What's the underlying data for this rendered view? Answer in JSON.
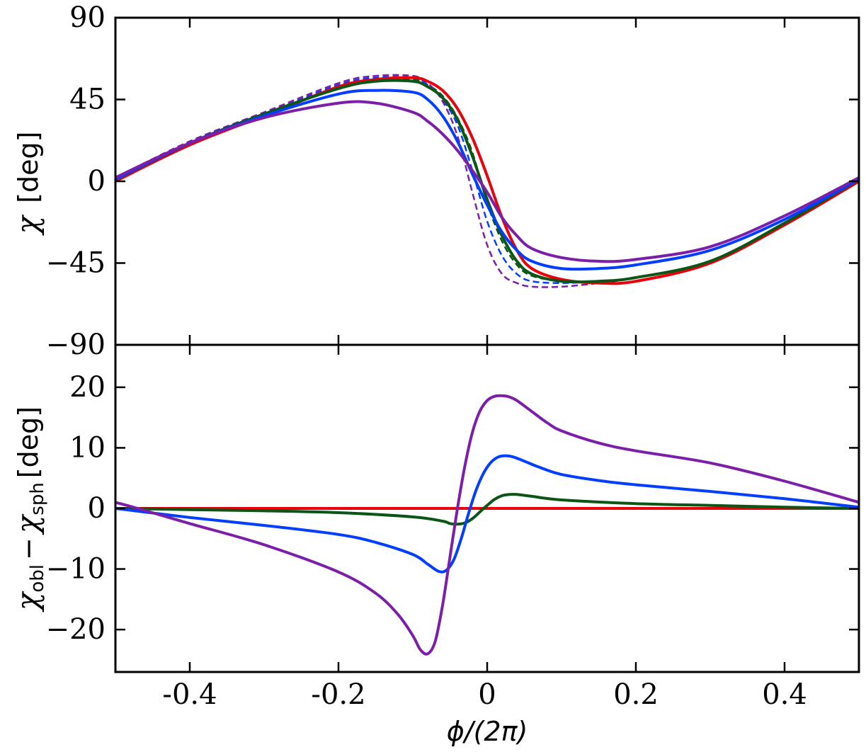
{
  "chart_data": [
    {
      "type": "line",
      "panel": "top",
      "ylabel_symbol": "χ",
      "ylabel_unit": "[deg]",
      "xlim": [
        -0.5,
        0.5
      ],
      "ylim": [
        -90,
        90
      ],
      "yticks": [
        90,
        45,
        0,
        -45,
        -90
      ],
      "ytick_labels": [
        "90",
        "45",
        "0",
        "−45",
        "−90"
      ],
      "grid": false,
      "series": [
        {
          "color": "#e8000b",
          "style": "solid",
          "shift": 0.0,
          "amp": 1.0,
          "x": [
            -0.5,
            -0.4,
            -0.3,
            -0.2,
            -0.15,
            -0.1,
            -0.08,
            -0.06,
            -0.04,
            -0.02,
            0,
            0.02,
            0.04,
            0.06,
            0.1,
            0.15,
            0.2,
            0.3,
            0.4,
            0.5
          ],
          "y": [
            0,
            20,
            36,
            52,
            56,
            57,
            55,
            50,
            40,
            24,
            3,
            -20,
            -38,
            -48,
            -54,
            -56,
            -55,
            -45,
            -24,
            0
          ]
        },
        {
          "color": "#0b5516",
          "style": "solid",
          "x": [
            -0.5,
            -0.4,
            -0.3,
            -0.2,
            -0.15,
            -0.1,
            -0.08,
            -0.06,
            -0.04,
            -0.02,
            0,
            0.02,
            0.04,
            0.06,
            0.1,
            0.15,
            0.2,
            0.3,
            0.4,
            0.5
          ],
          "y": [
            1,
            21,
            37,
            51,
            55,
            55,
            52,
            46,
            34,
            14,
            -10,
            -30,
            -44,
            -51,
            -55,
            -55,
            -53,
            -44,
            -23,
            1
          ]
        },
        {
          "color": "#023eff",
          "style": "solid",
          "x": [
            -0.5,
            -0.4,
            -0.3,
            -0.2,
            -0.15,
            -0.1,
            -0.08,
            -0.06,
            -0.04,
            -0.02,
            0,
            0.02,
            0.04,
            0.06,
            0.1,
            0.15,
            0.2,
            0.3,
            0.4,
            0.5
          ],
          "y": [
            1,
            21,
            36,
            48,
            50,
            49,
            45,
            36,
            22,
            4,
            -13,
            -28,
            -38,
            -44,
            -48,
            -48,
            -46,
            -38,
            -21,
            1
          ]
        },
        {
          "color": "#7c1fa8",
          "style": "solid",
          "x": [
            -0.5,
            -0.4,
            -0.3,
            -0.2,
            -0.15,
            -0.1,
            -0.08,
            -0.06,
            -0.04,
            -0.02,
            0,
            0.02,
            0.04,
            0.06,
            0.1,
            0.15,
            0.2,
            0.3,
            0.4,
            0.5
          ],
          "y": [
            2,
            21,
            35,
            43,
            43,
            38,
            33,
            26,
            17,
            6,
            -6,
            -20,
            -30,
            -37,
            -42,
            -44,
            -43,
            -36,
            -19,
            2
          ]
        },
        {
          "color": "#0b5516",
          "style": "dashed",
          "x": [
            -0.5,
            -0.4,
            -0.3,
            -0.2,
            -0.15,
            -0.1,
            -0.08,
            -0.06,
            -0.04,
            -0.02,
            0,
            0.02,
            0.04,
            0.06,
            0.1,
            0.15,
            0.2,
            0.3,
            0.4,
            0.5
          ],
          "y": [
            1,
            21,
            37,
            52,
            56,
            56,
            53,
            47,
            35,
            16,
            -12,
            -33,
            -46,
            -52,
            -55,
            -55,
            -53,
            -44,
            -23,
            1
          ]
        },
        {
          "color": "#023eff",
          "style": "dashed",
          "x": [
            -0.5,
            -0.4,
            -0.3,
            -0.2,
            -0.15,
            -0.1,
            -0.08,
            -0.06,
            -0.04,
            -0.02,
            0,
            0.02,
            0.04,
            0.06,
            0.1,
            0.15,
            0.2,
            0.3,
            0.4,
            0.5
          ],
          "y": [
            1,
            21,
            37,
            53,
            57,
            57,
            53,
            45,
            31,
            6,
            -22,
            -41,
            -51,
            -55,
            -56,
            -55,
            -53,
            -44,
            -23,
            1
          ]
        },
        {
          "color": "#7c1fa8",
          "style": "dashed",
          "x": [
            -0.5,
            -0.4,
            -0.3,
            -0.2,
            -0.15,
            -0.1,
            -0.08,
            -0.06,
            -0.04,
            -0.02,
            0,
            0.02,
            0.04,
            0.06,
            0.1,
            0.15,
            0.2,
            0.3,
            0.4,
            0.5
          ],
          "y": [
            2,
            22,
            38,
            54,
            58,
            58,
            54,
            44,
            25,
            -6,
            -35,
            -51,
            -56,
            -58,
            -58,
            -56,
            -53,
            -44,
            -23,
            2
          ]
        }
      ]
    },
    {
      "type": "line",
      "panel": "bottom",
      "ylabel_main": "χ",
      "ylabel_sub1": "obl",
      "ylabel_minus": "−",
      "ylabel_sub2": "sph",
      "ylabel_unit": "[deg]",
      "xlabel": "ϕ/(2π)",
      "xlim": [
        -0.5,
        0.5
      ],
      "ylim": [
        -27,
        27
      ],
      "yticks": [
        20,
        10,
        0,
        -10,
        -20
      ],
      "ytick_labels": [
        "20",
        "10",
        "0",
        "−10",
        "−20"
      ],
      "xticks": [
        -0.4,
        -0.2,
        0,
        0.2,
        0.4
      ],
      "xtick_labels": [
        "-0.4",
        "-0.2",
        "0",
        "0.2",
        "0.4"
      ],
      "grid": false,
      "series": [
        {
          "color": "#e8000b",
          "style": "solid",
          "x": [
            -0.5,
            0.5
          ],
          "y": [
            0,
            0
          ]
        },
        {
          "color": "#0b5516",
          "style": "solid",
          "x": [
            -0.5,
            -0.4,
            -0.3,
            -0.2,
            -0.1,
            -0.06,
            -0.05,
            -0.04,
            -0.03,
            -0.02,
            -0.01,
            0,
            0.01,
            0.02,
            0.03,
            0.04,
            0.06,
            0.1,
            0.2,
            0.3,
            0.4,
            0.5
          ],
          "y": [
            0,
            -0.2,
            -0.4,
            -0.7,
            -1.4,
            -2.1,
            -2.5,
            -2.6,
            -2.4,
            -1.7,
            -0.6,
            0.5,
            1.5,
            2.1,
            2.3,
            2.3,
            2.0,
            1.4,
            0.8,
            0.5,
            0.2,
            0
          ]
        },
        {
          "color": "#023eff",
          "style": "solid",
          "x": [
            -0.5,
            -0.4,
            -0.3,
            -0.2,
            -0.15,
            -0.1,
            -0.08,
            -0.065,
            -0.055,
            -0.045,
            -0.035,
            -0.025,
            -0.015,
            -0.005,
            0.005,
            0.015,
            0.025,
            0.035,
            0.05,
            0.07,
            0.1,
            0.15,
            0.2,
            0.3,
            0.4,
            0.5
          ],
          "y": [
            0,
            -1.5,
            -2.8,
            -4.3,
            -5.6,
            -7.6,
            -9.2,
            -10.4,
            -10.2,
            -8.5,
            -5.0,
            -0.8,
            3.0,
            5.8,
            7.6,
            8.5,
            8.7,
            8.5,
            7.8,
            6.8,
            5.6,
            4.6,
            3.9,
            2.8,
            1.6,
            0.2
          ]
        },
        {
          "color": "#7c1fa8",
          "style": "solid",
          "x": [
            -0.5,
            -0.47,
            -0.4,
            -0.3,
            -0.2,
            -0.15,
            -0.12,
            -0.1,
            -0.09,
            -0.08,
            -0.07,
            -0.06,
            -0.05,
            -0.04,
            -0.03,
            -0.02,
            -0.01,
            0,
            0.01,
            0.02,
            0.03,
            0.04,
            0.06,
            0.08,
            0.1,
            0.15,
            0.2,
            0.3,
            0.4,
            0.5
          ],
          "y": [
            1.0,
            0,
            -2.5,
            -6.0,
            -10.5,
            -14.0,
            -17.5,
            -21.0,
            -23.3,
            -24.0,
            -22.0,
            -16.0,
            -8.0,
            0,
            7.0,
            12.5,
            16.0,
            17.8,
            18.5,
            18.6,
            18.4,
            17.8,
            16.0,
            14.2,
            12.8,
            10.8,
            9.5,
            7.5,
            4.5,
            1.0
          ]
        }
      ]
    }
  ]
}
